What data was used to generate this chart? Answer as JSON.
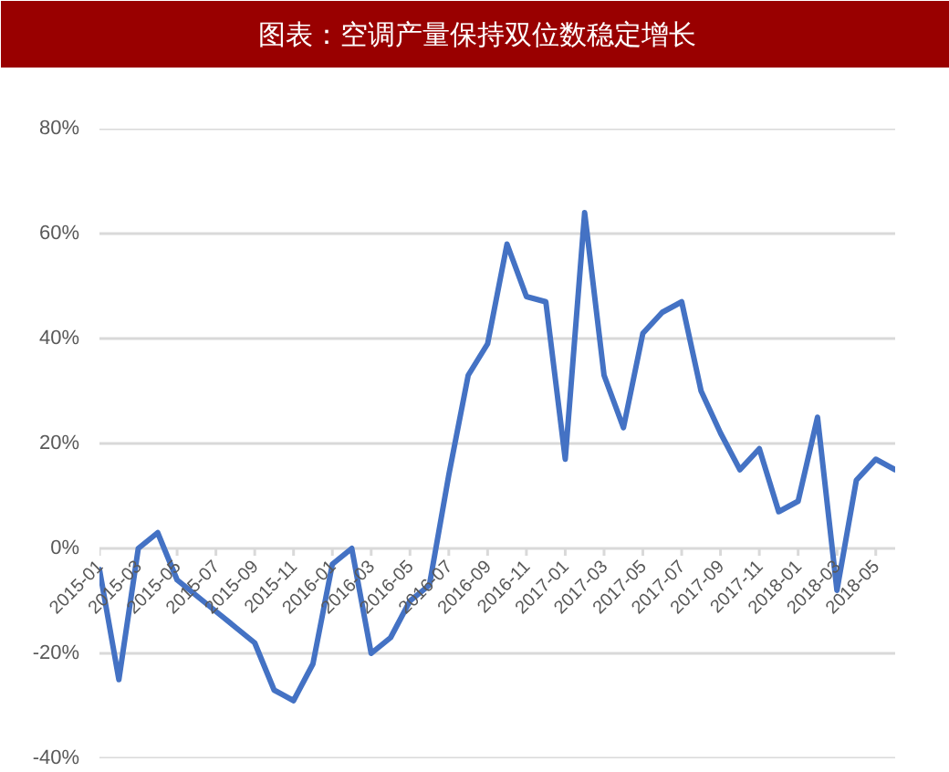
{
  "chart_data": {
    "type": "line",
    "title": "图表：空调产量保持双位数稳定增长",
    "categories": [
      "2015-01",
      null,
      "2015-03",
      null,
      "2015-05",
      null,
      "2015-07",
      null,
      "2015-09",
      null,
      "2015-11",
      null,
      "2016-01",
      null,
      "2016-03",
      null,
      "2016-05",
      null,
      "2016-07",
      null,
      "2016-09",
      null,
      "2016-11",
      null,
      "2017-01",
      null,
      "2017-03",
      null,
      "2017-05",
      null,
      "2017-07",
      null,
      "2017-09",
      null,
      "2017-11",
      null,
      "2018-01",
      null,
      "2018-03",
      null,
      "2018-05",
      null
    ],
    "series": [
      {
        "color": "#4472c4",
        "values": [
          -4,
          -25,
          0,
          3,
          -6,
          -9,
          -12,
          -15,
          -18,
          -27,
          -29,
          -22,
          -3,
          0,
          -20,
          -17,
          -10,
          -7,
          14,
          33,
          39,
          58,
          48,
          47,
          17,
          64,
          33,
          23,
          41,
          45,
          47,
          30,
          22,
          15,
          19,
          7,
          9,
          25,
          -8,
          13,
          17,
          15
        ]
      }
    ],
    "ylim": [
      -40,
      80
    ],
    "yticks": [
      {
        "value": -40,
        "label": "-40%"
      },
      {
        "value": -20,
        "label": "-20%"
      },
      {
        "value": 0,
        "label": "0%"
      },
      {
        "value": 20,
        "label": "20%"
      },
      {
        "value": 40,
        "label": "40%"
      },
      {
        "value": 60,
        "label": "60%"
      },
      {
        "value": 80,
        "label": "80%"
      }
    ],
    "grid": "y",
    "line_style": "solid"
  }
}
